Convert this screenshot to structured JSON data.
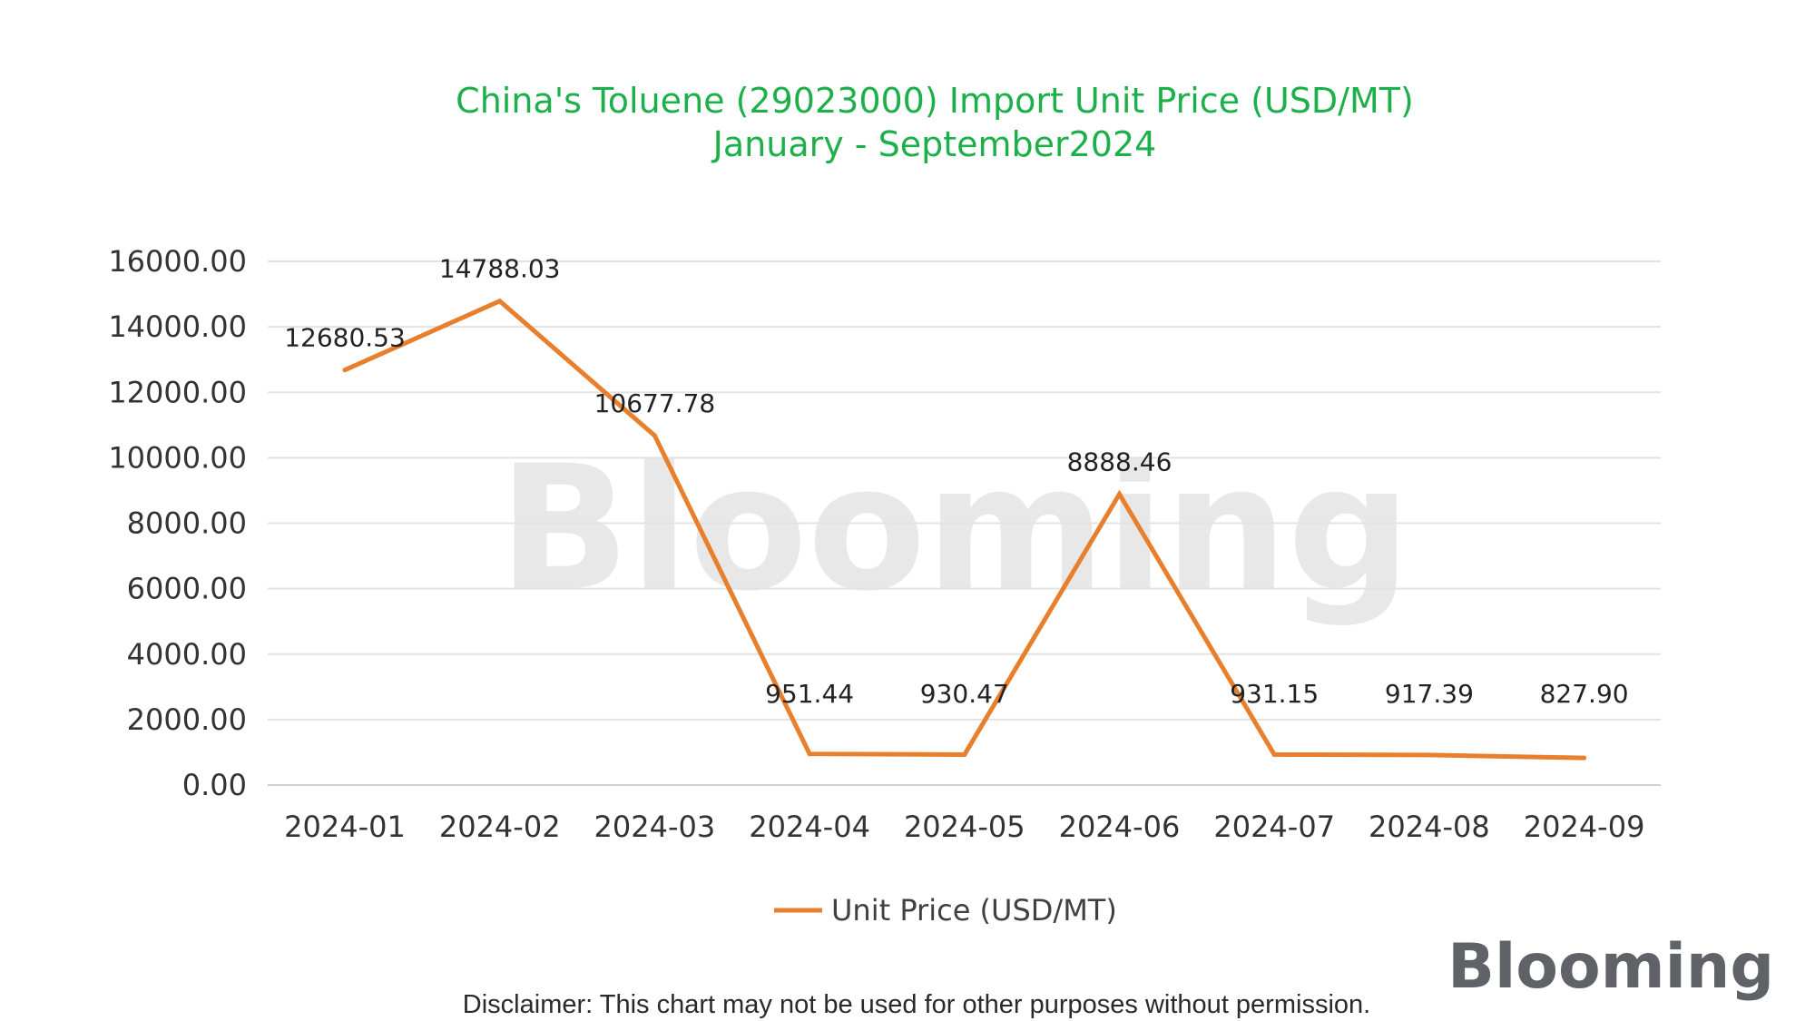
{
  "chart_data": {
    "type": "line",
    "title": "China's Toluene (29023000) Import Unit Price (USD/MT)",
    "subtitle": "January - September2024",
    "categories": [
      "2024-01",
      "2024-02",
      "2024-03",
      "2024-04",
      "2024-05",
      "2024-06",
      "2024-07",
      "2024-08",
      "2024-09"
    ],
    "series": [
      {
        "name": "Unit Price (USD/MT)",
        "values": [
          12680.53,
          14788.03,
          10677.78,
          951.44,
          930.47,
          8888.46,
          931.15,
          917.39,
          827.9
        ],
        "labels": [
          "12680.53",
          "14788.03",
          "10677.78",
          "951.44",
          "930.47",
          "8888.46",
          "931.15",
          "917.39",
          "827.90"
        ],
        "color": "#e87f2c"
      }
    ],
    "y_ticks": [
      "0.00",
      "2000.00",
      "4000.00",
      "6000.00",
      "8000.00",
      "10000.00",
      "12000.00",
      "14000.00",
      "16000.00"
    ],
    "ylim": [
      0,
      16000
    ],
    "grid": true,
    "legend_position": "bottom",
    "title_color": "#1db04a"
  },
  "watermark": {
    "text": "Blooming"
  },
  "logo": {
    "text": "Blooming"
  },
  "disclaimer": "Disclaimer: This chart may not be used for other purposes without permission."
}
